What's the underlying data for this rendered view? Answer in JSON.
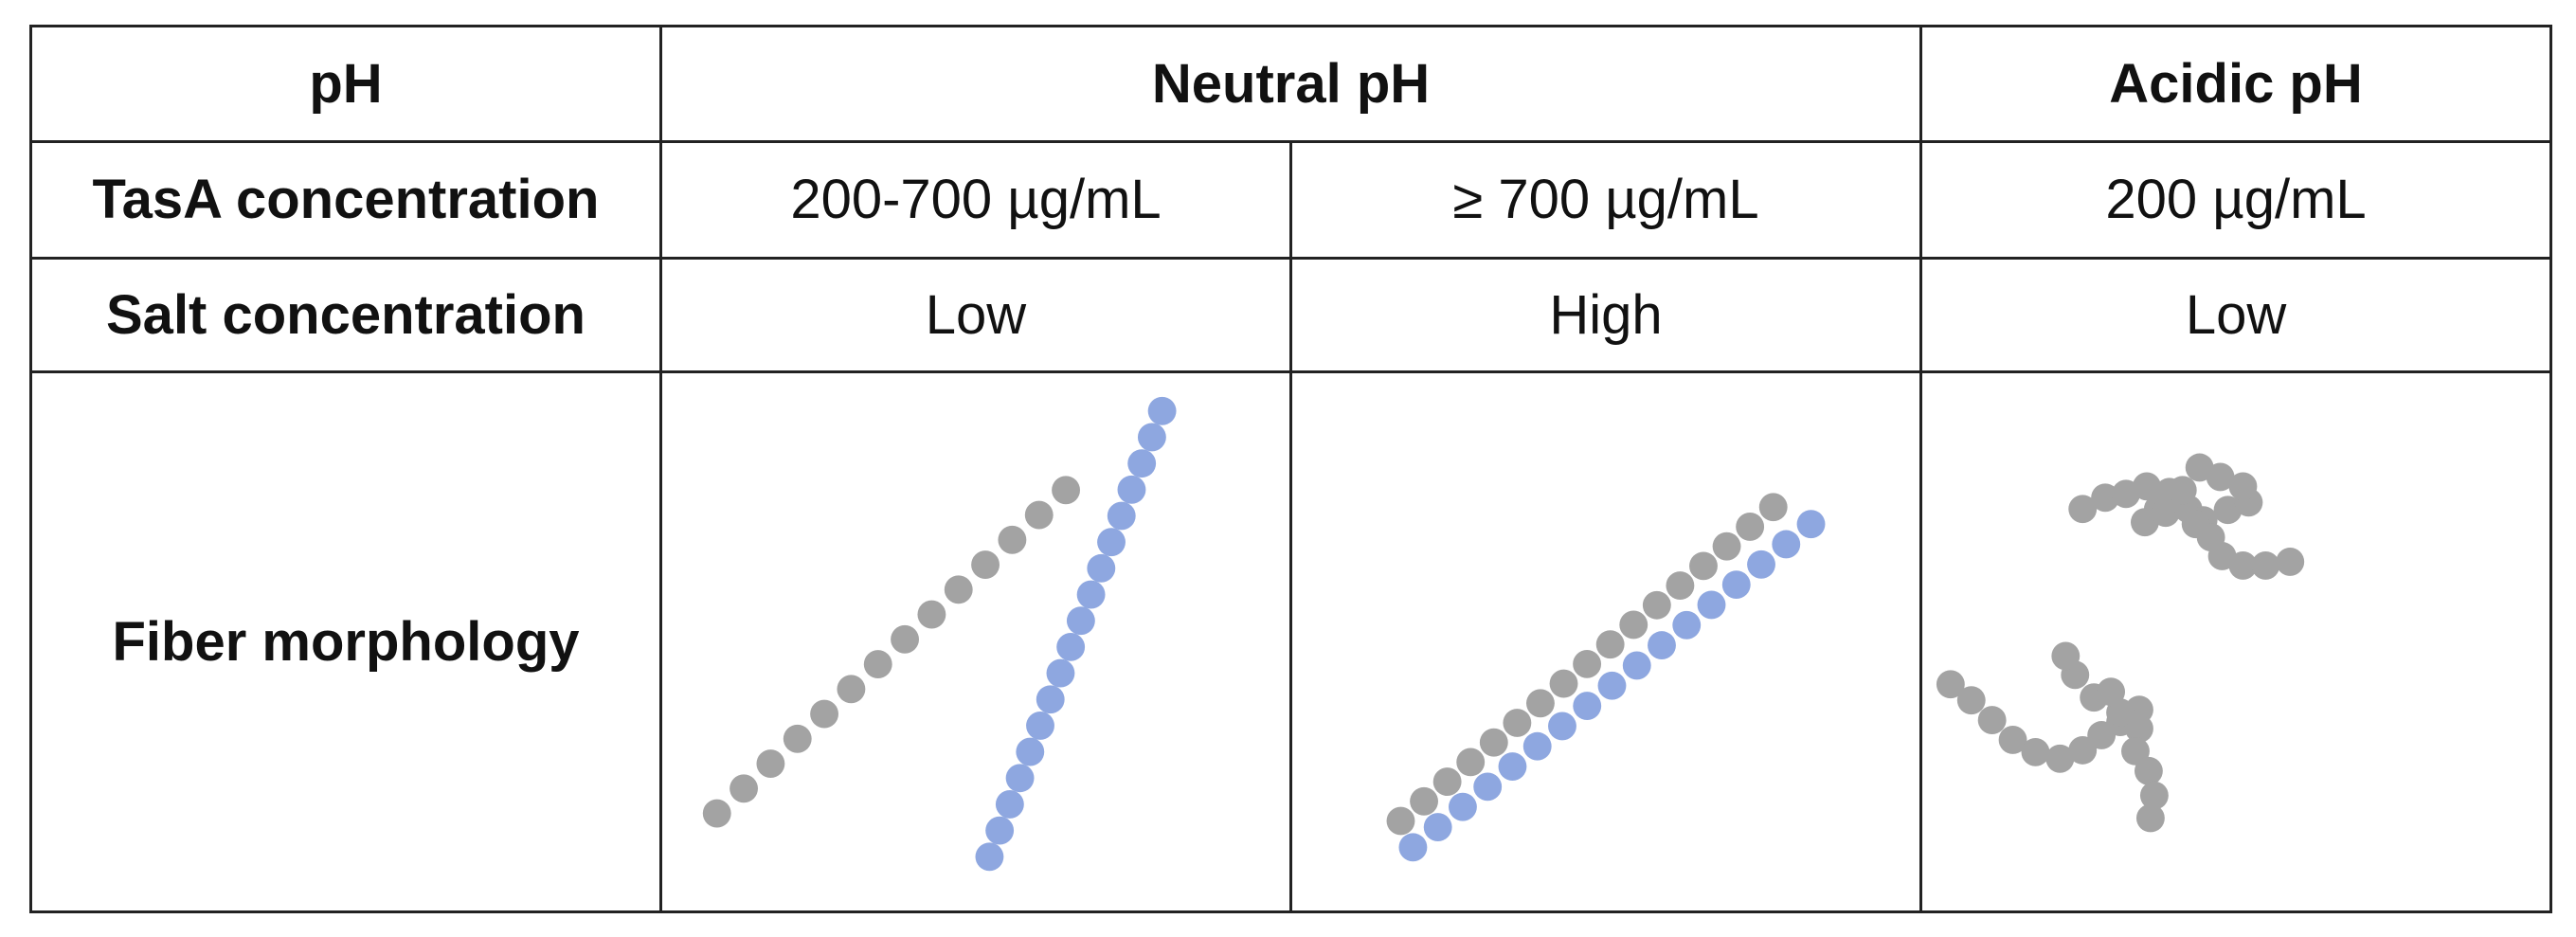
{
  "colors": {
    "grey_bead": "#a3a3a3",
    "blue_bead": "#8ea7e0",
    "border": "#222222"
  },
  "header": {
    "ph_label": "pH",
    "neutral": "Neutral pH",
    "acidic": "Acidic pH"
  },
  "rows": {
    "tasa": {
      "label": "TasA concentration",
      "values": [
        "200-700 µg/mL",
        "≥ 700 µg/mL",
        "200 µg/mL"
      ]
    },
    "salt": {
      "label": "Salt concentration",
      "values": [
        "Low",
        "High",
        "Low"
      ]
    },
    "fiber": {
      "label": "Fiber morphology"
    }
  }
}
